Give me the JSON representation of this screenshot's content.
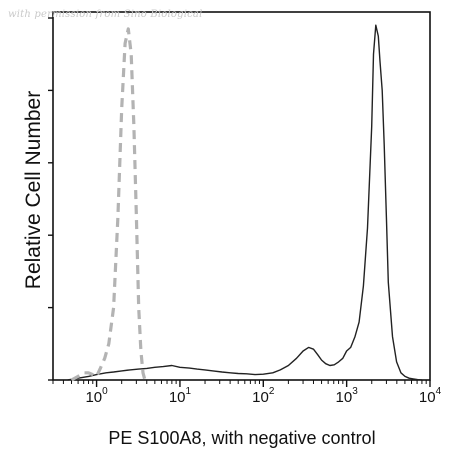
{
  "watermark": "with permission from Sino Biological",
  "chart_data": {
    "type": "line",
    "title": "",
    "xlabel": "PE S100A8, with negative control",
    "ylabel": "Relative Cell Number",
    "xscale": "log",
    "xlim": [
      0.3,
      10000
    ],
    "ylim": [
      0,
      1.0
    ],
    "xticks": [
      {
        "base": "10",
        "exp": "0",
        "value": 1
      },
      {
        "base": "10",
        "exp": "1",
        "value": 10
      },
      {
        "base": "10",
        "exp": "2",
        "value": 100
      },
      {
        "base": "10",
        "exp": "3",
        "value": 1000
      },
      {
        "base": "10",
        "exp": "4",
        "value": 10000
      }
    ],
    "grid": false,
    "legend": "none",
    "series": [
      {
        "style": "solid",
        "color": "#222222",
        "x": [
          0.45,
          0.6,
          0.8,
          1.0,
          1.3,
          1.6,
          2.0,
          2.5,
          3.2,
          4.0,
          5.0,
          6.3,
          8.0,
          10,
          13,
          16,
          20,
          25,
          32,
          40,
          50,
          63,
          80,
          100,
          130,
          160,
          200,
          250,
          300,
          350,
          400,
          450,
          500,
          560,
          630,
          710,
          800,
          900,
          1000,
          1120,
          1260,
          1410,
          1590,
          1780,
          2000,
          2100,
          2240,
          2400,
          2510,
          2670,
          2820,
          3000,
          3160,
          3550,
          3980,
          4470,
          5010,
          5620,
          6310,
          7080,
          8000
        ],
        "y": [
          0.0,
          0.005,
          0.01,
          0.015,
          0.02,
          0.022,
          0.025,
          0.028,
          0.03,
          0.032,
          0.035,
          0.037,
          0.04,
          0.035,
          0.033,
          0.03,
          0.028,
          0.025,
          0.022,
          0.02,
          0.018,
          0.017,
          0.015,
          0.016,
          0.02,
          0.028,
          0.04,
          0.06,
          0.08,
          0.09,
          0.085,
          0.07,
          0.055,
          0.045,
          0.04,
          0.042,
          0.05,
          0.06,
          0.08,
          0.09,
          0.12,
          0.16,
          0.26,
          0.42,
          0.7,
          0.9,
          0.98,
          0.95,
          0.88,
          0.8,
          0.65,
          0.45,
          0.27,
          0.12,
          0.05,
          0.02,
          0.01,
          0.005,
          0.003,
          0.001,
          0.0
        ]
      },
      {
        "style": "dashed",
        "color": "#b3b3b3",
        "x": [
          0.5,
          0.6,
          0.7,
          0.8,
          0.9,
          1.0,
          1.1,
          1.25,
          1.4,
          1.6,
          1.8,
          2.0,
          2.2,
          2.4,
          2.6,
          2.8,
          3.0,
          3.2,
          3.4,
          3.6,
          3.8
        ],
        "y": [
          0.0,
          0.01,
          0.02,
          0.02,
          0.015,
          0.01,
          0.03,
          0.06,
          0.1,
          0.2,
          0.45,
          0.75,
          0.93,
          0.97,
          0.9,
          0.7,
          0.45,
          0.2,
          0.08,
          0.02,
          0.0
        ]
      }
    ]
  }
}
